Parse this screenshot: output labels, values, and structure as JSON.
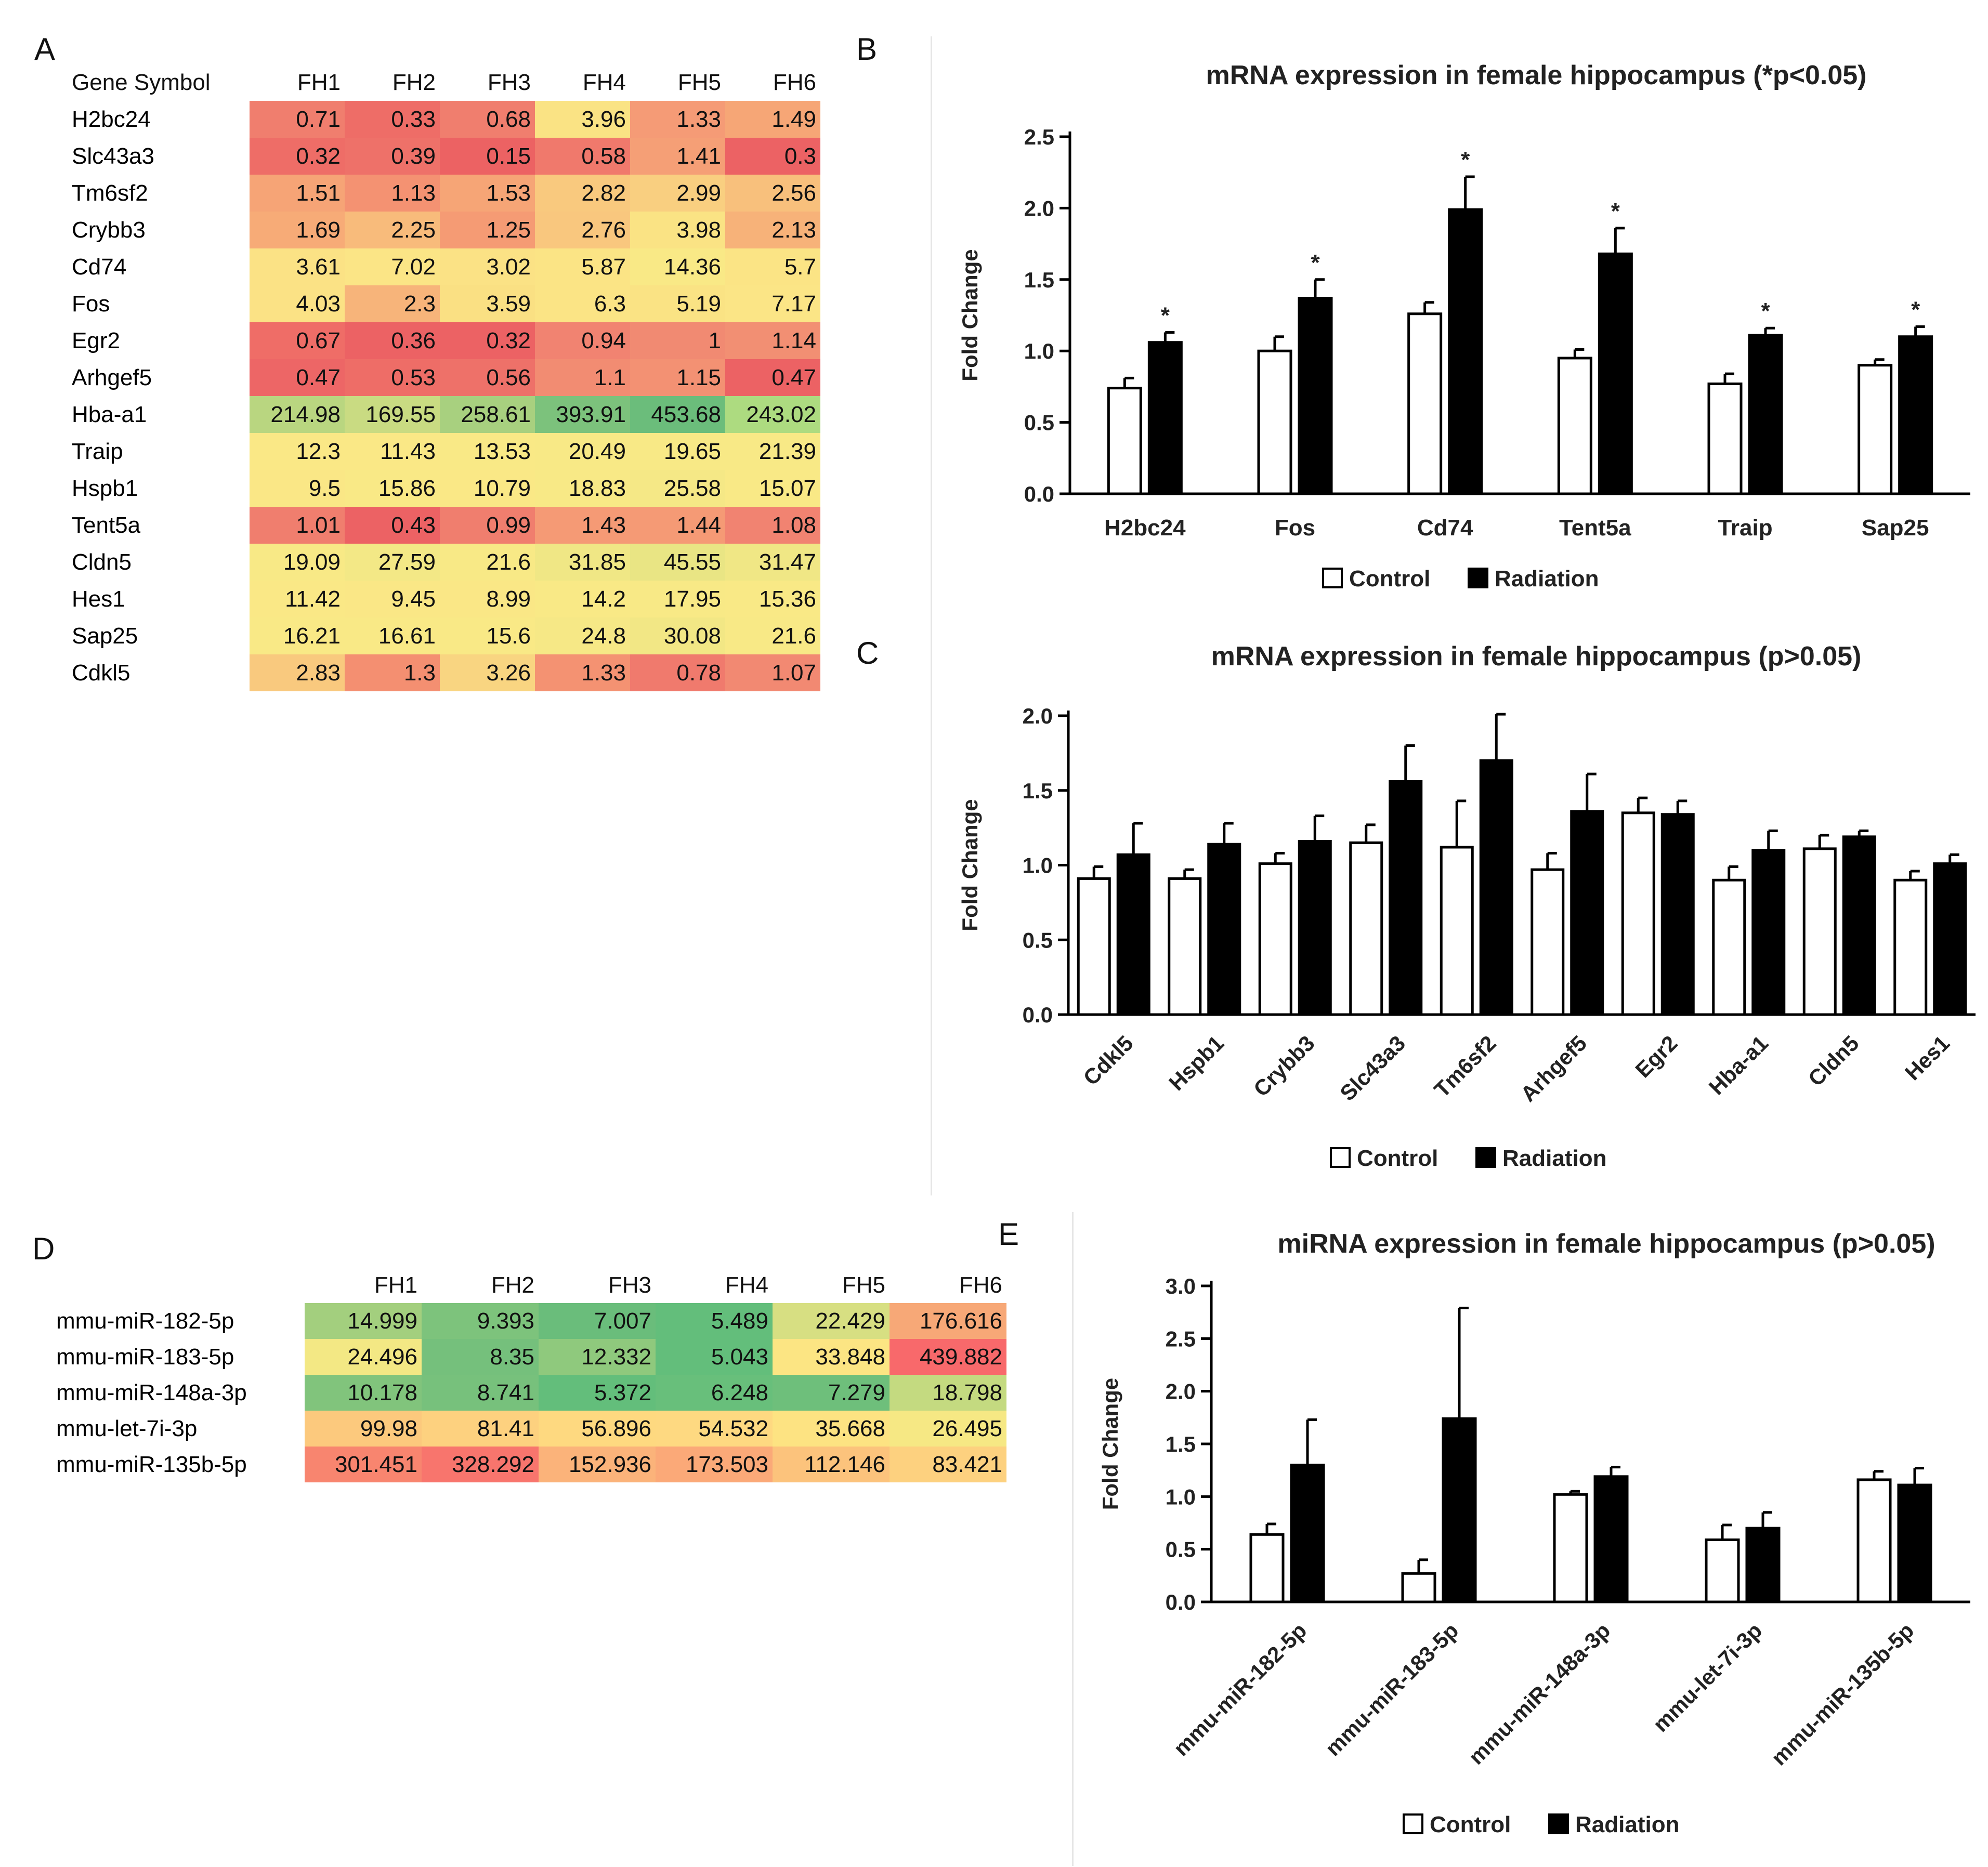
{
  "panels": {
    "a": "A",
    "b": "B",
    "c": "C",
    "d": "D",
    "e": "E"
  },
  "heatmap_a": {
    "corner": "Gene Symbol",
    "columns": [
      "FH1",
      "FH2",
      "FH3",
      "FH4",
      "FH5",
      "FH6"
    ],
    "rows": [
      {
        "gene": "H2bc24",
        "values": [
          "0.71",
          "0.33",
          "0.68",
          "3.96",
          "1.33",
          "1.49"
        ],
        "colors": [
          "#f07e6e",
          "#ee6d67",
          "#f07e6e",
          "#fae384",
          "#f59b76",
          "#f6a676"
        ]
      },
      {
        "gene": "Slc43a3",
        "values": [
          "0.32",
          "0.39",
          "0.15",
          "0.58",
          "1.41",
          "0.3"
        ],
        "colors": [
          "#ee6d67",
          "#ee7169",
          "#ec6263",
          "#f0796c",
          "#f59f76",
          "#ec6264"
        ]
      },
      {
        "gene": "Tm6sf2",
        "values": [
          "1.51",
          "1.13",
          "1.53",
          "2.82",
          "2.99",
          "2.56"
        ],
        "colors": [
          "#f6a476",
          "#f49272",
          "#f6a576",
          "#f9c97e",
          "#f9cf80",
          "#f8c07c"
        ]
      },
      {
        "gene": "Crybb3",
        "values": [
          "1.69",
          "2.25",
          "1.25",
          "2.76",
          "3.98",
          "2.13"
        ],
        "colors": [
          "#f7ab77",
          "#f8bb7b",
          "#f59b74",
          "#f9c77e",
          "#fae384",
          "#f7b279"
        ]
      },
      {
        "gene": "Cd74",
        "values": [
          "3.61",
          "7.02",
          "3.02",
          "5.87",
          "14.36",
          "5.7"
        ],
        "colors": [
          "#fbe285",
          "#fbe586",
          "#fbe285",
          "#fbe485",
          "#f9e986",
          "#fbe485"
        ]
      },
      {
        "gene": "Fos",
        "values": [
          "4.03",
          "2.3",
          "3.59",
          "6.3",
          "5.19",
          "7.17"
        ],
        "colors": [
          "#fbe285",
          "#f7b47a",
          "#fae083",
          "#fbe485",
          "#fae384",
          "#fbe586"
        ]
      },
      {
        "gene": "Egr2",
        "values": [
          "0.67",
          "0.36",
          "0.32",
          "0.94",
          "1",
          "1.14"
        ],
        "colors": [
          "#ef6d67",
          "#ec6264",
          "#ec6264",
          "#f18371",
          "#f18a72",
          "#f28f73"
        ]
      },
      {
        "gene": "Arhgef5",
        "values": [
          "0.47",
          "0.53",
          "0.56",
          "1.1",
          "1.15",
          "0.47"
        ],
        "colors": [
          "#ed6666",
          "#ee6d67",
          "#ee7169",
          "#f28c72",
          "#f39173",
          "#ec6264"
        ]
      },
      {
        "gene": "Hba-a1",
        "values": [
          "214.98",
          "169.55",
          "258.61",
          "393.91",
          "453.68",
          "243.02"
        ],
        "colors": [
          "#b9d680",
          "#c9db82",
          "#a8d07f",
          "#7cc27c",
          "#6bbd7b",
          "#addb80"
        ]
      },
      {
        "gene": "Traip",
        "values": [
          "12.3",
          "11.43",
          "13.53",
          "20.49",
          "19.65",
          "21.39"
        ],
        "colors": [
          "#fae886",
          "#fae886",
          "#f9e986",
          "#f8e986",
          "#f8e986",
          "#f8e986"
        ]
      },
      {
        "gene": "Hspb1",
        "values": [
          "9.5",
          "15.86",
          "10.79",
          "18.83",
          "25.58",
          "15.07"
        ],
        "colors": [
          "#fae786",
          "#f9e986",
          "#fae886",
          "#f8e986",
          "#f5e886",
          "#f9e986"
        ]
      },
      {
        "gene": "Tent5a",
        "values": [
          "1.01",
          "0.43",
          "0.99",
          "1.43",
          "1.44",
          "1.08"
        ],
        "colors": [
          "#f07e6e",
          "#ec6264",
          "#f07e6e",
          "#f59a75",
          "#f59a75",
          "#f18371"
        ]
      },
      {
        "gene": "Cldn5",
        "values": [
          "19.09",
          "27.59",
          "21.6",
          "31.85",
          "45.55",
          "31.47"
        ],
        "colors": [
          "#f8e986",
          "#f3e886",
          "#f8e986",
          "#f0e785",
          "#e9e584",
          "#f0e785"
        ]
      },
      {
        "gene": "Hes1",
        "values": [
          "11.42",
          "9.45",
          "8.99",
          "14.2",
          "17.95",
          "15.36"
        ],
        "colors": [
          "#fae886",
          "#fae786",
          "#fae786",
          "#f9e986",
          "#f8e986",
          "#f9e986"
        ]
      },
      {
        "gene": "Sap25",
        "values": [
          "16.21",
          "16.61",
          "15.6",
          "24.8",
          "30.08",
          "21.6"
        ],
        "colors": [
          "#f9e986",
          "#f9e986",
          "#f9e986",
          "#f6e886",
          "#f2e785",
          "#f8e986"
        ]
      },
      {
        "gene": "Cdkl5",
        "values": [
          "2.83",
          "1.3",
          "3.26",
          "1.33",
          "0.78",
          "1.07"
        ],
        "colors": [
          "#f9c97e",
          "#f48f71",
          "#f9d581",
          "#f49272",
          "#f07a6d",
          "#f28972"
        ]
      }
    ]
  },
  "heatmap_d": {
    "columns": [
      "FH1",
      "FH2",
      "FH3",
      "FH4",
      "FH5",
      "FH6"
    ],
    "rows": [
      {
        "gene": "mmu-miR-182-5p",
        "values": [
          "14.999",
          "9.393",
          "7.007",
          "5.489",
          "22.429",
          "176.616"
        ],
        "colors": [
          "#a3cf7e",
          "#7dc37c",
          "#6abd7b",
          "#63be7b",
          "#d7df82",
          "#f7a877"
        ]
      },
      {
        "gene": "mmu-miR-183-5p",
        "values": [
          "24.496",
          "8.35",
          "12.332",
          "5.043",
          "33.848",
          "439.882"
        ],
        "colors": [
          "#f3e884",
          "#75c07c",
          "#8fc97d",
          "#63be7b",
          "#fce583",
          "#f8696b"
        ]
      },
      {
        "gene": "mmu-miR-148a-3p",
        "values": [
          "10.178",
          "8.741",
          "5.372",
          "6.248",
          "7.279",
          "18.798"
        ],
        "colors": [
          "#81c47c",
          "#77c17c",
          "#63be7b",
          "#68bf7b",
          "#6ebf7b",
          "#c4da80"
        ]
      },
      {
        "gene": "mmu-let-7i-3p",
        "values": [
          "99.98",
          "81.41",
          "56.896",
          "54.532",
          "35.668",
          "26.495"
        ],
        "colors": [
          "#fcc97d",
          "#fdd17f",
          "#fed980",
          "#fed981",
          "#fde382",
          "#f6e884"
        ]
      },
      {
        "gene": "mmu-miR-135b-5p",
        "values": [
          "301.451",
          "328.292",
          "152.936",
          "173.503",
          "112.146",
          "83.421"
        ],
        "colors": [
          "#f8856f",
          "#f8756d",
          "#fbb37a",
          "#fba978",
          "#fcc37c",
          "#fdd17f"
        ]
      }
    ]
  },
  "chart_data": [
    {
      "type": "bar",
      "id": "B",
      "title": "mRNA expression in female hippocampus (*p<0.05)",
      "ylabel": "Fold Change",
      "ylim": [
        0,
        2.5
      ],
      "yticks": [
        "0.0",
        "0.5",
        "1.0",
        "1.5",
        "2.0",
        "2.5"
      ],
      "categories": [
        "H2bc24",
        "Fos",
        "Cd74",
        "Tent5a",
        "Traip",
        "Sap25"
      ],
      "series": [
        {
          "name": "Control",
          "values": [
            0.74,
            1.0,
            1.26,
            0.95,
            0.77,
            0.9
          ],
          "errors": [
            0.07,
            0.1,
            0.08,
            0.06,
            0.07,
            0.04
          ]
        },
        {
          "name": "Radiation",
          "values": [
            1.06,
            1.37,
            1.99,
            1.68,
            1.11,
            1.1
          ],
          "errors": [
            0.07,
            0.13,
            0.23,
            0.18,
            0.05,
            0.07
          ]
        }
      ],
      "annotations": [
        "*",
        "*",
        "*",
        "*",
        "*",
        "*"
      ],
      "legend": [
        "Control",
        "Radiation"
      ]
    },
    {
      "type": "bar",
      "id": "C",
      "title": "mRNA expression in female hippocampus (p>0.05)",
      "ylabel": "Fold Change",
      "ylim": [
        0,
        2.0
      ],
      "yticks": [
        "0.0",
        "0.5",
        "1.0",
        "1.5",
        "2.0"
      ],
      "categories": [
        "Cdkl5",
        "Hspb1",
        "Crybb3",
        "Slc43a3",
        "Tm6sf2",
        "Arhgef5",
        "Egr2",
        "Hba-a1",
        "Cldn5",
        "Hes1"
      ],
      "series": [
        {
          "name": "Control",
          "values": [
            0.91,
            0.91,
            1.01,
            1.15,
            1.12,
            0.97,
            1.35,
            0.9,
            1.11,
            0.9
          ],
          "errors": [
            0.08,
            0.06,
            0.07,
            0.12,
            0.31,
            0.11,
            0.1,
            0.09,
            0.09,
            0.06
          ]
        },
        {
          "name": "Radiation",
          "values": [
            1.07,
            1.14,
            1.16,
            1.56,
            1.7,
            1.36,
            1.34,
            1.1,
            1.19,
            1.01
          ],
          "errors": [
            0.21,
            0.14,
            0.17,
            0.24,
            0.31,
            0.25,
            0.09,
            0.13,
            0.04,
            0.06
          ]
        }
      ],
      "legend": [
        "Control",
        "Radiation"
      ]
    },
    {
      "type": "bar",
      "id": "E",
      "title": "miRNA expression in female hippocampus (p>0.05)",
      "ylabel": "Fold Change",
      "ylim": [
        0,
        3.0
      ],
      "yticks": [
        "0.0",
        "0.5",
        "1.0",
        "1.5",
        "2.0",
        "2.5",
        "3.0"
      ],
      "categories": [
        "mmu-miR-182-5p",
        "mmu-miR-183-5p",
        "mmu-miR-148a-3p",
        "mmu-let-7i-3p",
        "mmu-miR-135b-5p"
      ],
      "series": [
        {
          "name": "Control",
          "values": [
            0.64,
            0.27,
            1.02,
            0.59,
            1.16
          ],
          "errors": [
            0.1,
            0.13,
            0.03,
            0.14,
            0.08
          ]
        },
        {
          "name": "Radiation",
          "values": [
            1.3,
            1.74,
            1.19,
            0.7,
            1.11
          ],
          "errors": [
            0.43,
            1.05,
            0.09,
            0.15,
            0.16
          ]
        }
      ],
      "legend": [
        "Control",
        "Radiation"
      ]
    }
  ]
}
